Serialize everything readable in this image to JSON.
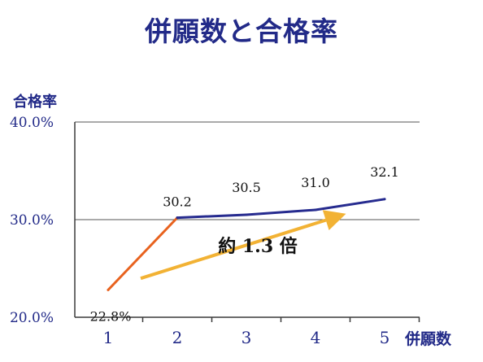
{
  "title": "併願数と合格率",
  "colors": {
    "title": "#222a88",
    "axis": "#3a3a3a",
    "grid": "#555555",
    "segment_first": "#e8621e",
    "segment_rest": "#262b8f",
    "arrow": "#f2b234",
    "annotation": "#111111"
  },
  "chart_data": {
    "type": "line",
    "title": "併願数と合格率",
    "xlabel": "併願数",
    "ylabel": "合格率",
    "categories": [
      "1",
      "2",
      "3",
      "4",
      "5"
    ],
    "x": [
      1,
      2,
      3,
      4,
      5
    ],
    "series": [
      {
        "values": [
          22.8,
          30.2,
          30.5,
          31.0,
          32.1
        ],
        "data_labels": [
          "22.8%",
          "30.2",
          "30.5",
          "31.0",
          "32.1"
        ]
      }
    ],
    "ylim": [
      20,
      40
    ],
    "y_ticks": [
      20,
      30,
      40
    ],
    "y_tick_labels": [
      "20.0%",
      "30.0%",
      "40.0%"
    ],
    "grid": true,
    "legend": "none",
    "annotation": {
      "text": "約 1.3 倍",
      "from": {
        "x": 1.0,
        "y": 23.9
      },
      "to": {
        "x": 4.3,
        "y": 31.6
      }
    }
  }
}
